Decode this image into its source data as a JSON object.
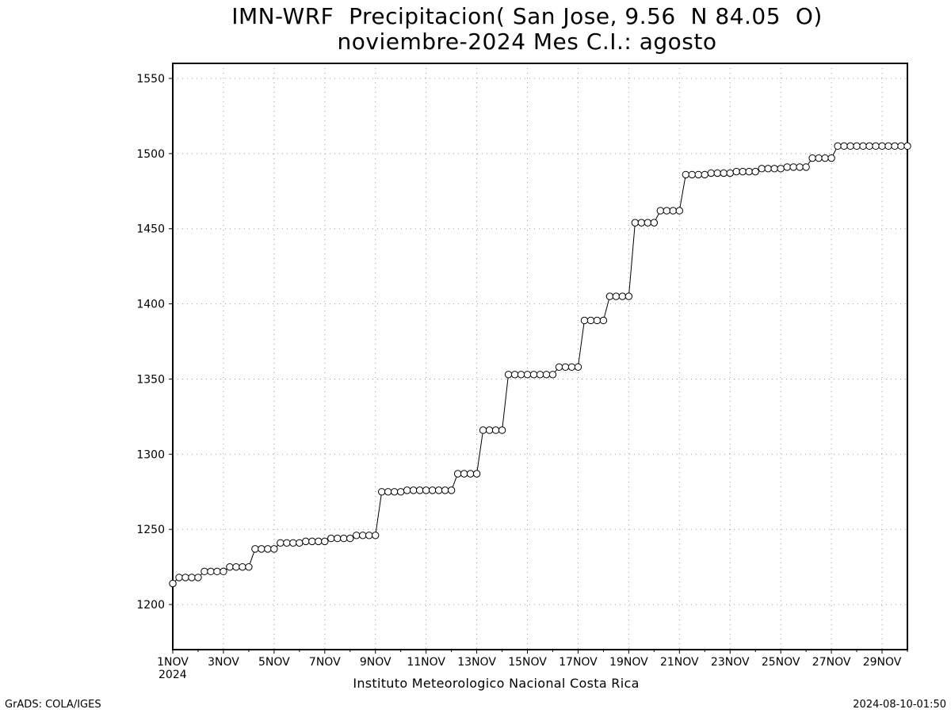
{
  "chart_data": {
    "type": "line",
    "title": "IMN-WRF  Precipitacion( San Jose, 9.56  N 84.05  O)",
    "subtitle": "noviembre-2024 Mes C.I.: agosto",
    "xlabel": "Instituto Meteorologico Nacional Costa Rica",
    "ylabel": "",
    "x_start_label": "2024",
    "xlim_days": [
      1,
      30
    ],
    "ylim": [
      1170,
      1560
    ],
    "yticks": [
      1200,
      1250,
      1300,
      1350,
      1400,
      1450,
      1500,
      1550
    ],
    "xtick_labels": [
      "1NOV",
      "3NOV",
      "5NOV",
      "7NOV",
      "9NOV",
      "11NOV",
      "13NOV",
      "15NOV",
      "17NOV",
      "19NOV",
      "21NOV",
      "23NOV",
      "25NOV",
      "27NOV",
      "29NOV"
    ],
    "xtick_days": [
      1,
      3,
      5,
      7,
      9,
      11,
      13,
      15,
      17,
      19,
      21,
      23,
      25,
      27,
      29
    ],
    "grid": true,
    "marker": "open-circle",
    "line_color": "#000000",
    "series": [
      {
        "x": [
          1,
          1.25,
          1.5,
          1.75,
          2,
          2.25,
          2.5,
          2.75,
          3,
          3.25,
          3.5,
          3.75,
          4,
          4.25,
          4.5,
          4.75,
          5,
          5.25,
          5.5,
          5.75,
          6,
          6.25,
          6.5,
          6.75,
          7,
          7.25,
          7.5,
          7.75,
          8,
          8.25,
          8.5,
          8.75,
          9,
          9.25,
          9.5,
          9.75,
          10,
          10.25,
          10.5,
          10.75,
          11,
          11.25,
          11.5,
          11.75,
          12,
          12.25,
          12.5,
          12.75,
          13,
          13.25,
          13.5,
          13.75,
          14,
          14.25,
          14.5,
          14.75,
          15,
          15.25,
          15.5,
          15.75,
          16,
          16.25,
          16.5,
          16.75,
          17,
          17.25,
          17.5,
          17.75,
          18,
          18.25,
          18.5,
          18.75,
          19,
          19.25,
          19.5,
          19.75,
          20,
          20.25,
          20.5,
          20.75,
          21,
          21.25,
          21.5,
          21.75,
          22,
          22.25,
          22.5,
          22.75,
          23,
          23.25,
          23.5,
          23.75,
          24,
          24.25,
          24.5,
          24.75,
          25,
          25.25,
          25.5,
          25.75,
          26,
          26.25,
          26.5,
          26.75,
          27,
          27.25,
          27.5,
          27.75,
          28,
          28.25,
          28.5,
          28.75,
          29,
          29.25,
          29.5,
          29.75,
          30
        ],
        "values": [
          1214,
          1218,
          1218,
          1218,
          1218,
          1222,
          1222,
          1222,
          1222,
          1225,
          1225,
          1225,
          1225,
          1237,
          1237,
          1237,
          1237,
          1241,
          1241,
          1241,
          1241,
          1242,
          1242,
          1242,
          1242,
          1244,
          1244,
          1244,
          1244,
          1246,
          1246,
          1246,
          1246,
          1275,
          1275,
          1275,
          1275,
          1276,
          1276,
          1276,
          1276,
          1276,
          1276,
          1276,
          1276,
          1287,
          1287,
          1287,
          1287,
          1316,
          1316,
          1316,
          1316,
          1353,
          1353,
          1353,
          1353,
          1353,
          1353,
          1353,
          1353,
          1358,
          1358,
          1358,
          1358,
          1389,
          1389,
          1389,
          1389,
          1405,
          1405,
          1405,
          1405,
          1454,
          1454,
          1454,
          1454,
          1462,
          1462,
          1462,
          1462,
          1486,
          1486,
          1486,
          1486,
          1487,
          1487,
          1487,
          1487,
          1488,
          1488,
          1488,
          1488,
          1490,
          1490,
          1490,
          1490,
          1491,
          1491,
          1491,
          1491,
          1497,
          1497,
          1497,
          1497,
          1505,
          1505,
          1505,
          1505,
          1505,
          1505,
          1505,
          1505,
          1505,
          1505,
          1505,
          1505
        ]
      }
    ]
  },
  "footer": {
    "left": "GrADS: COLA/IGES",
    "right": "2024-08-10-01:50"
  }
}
